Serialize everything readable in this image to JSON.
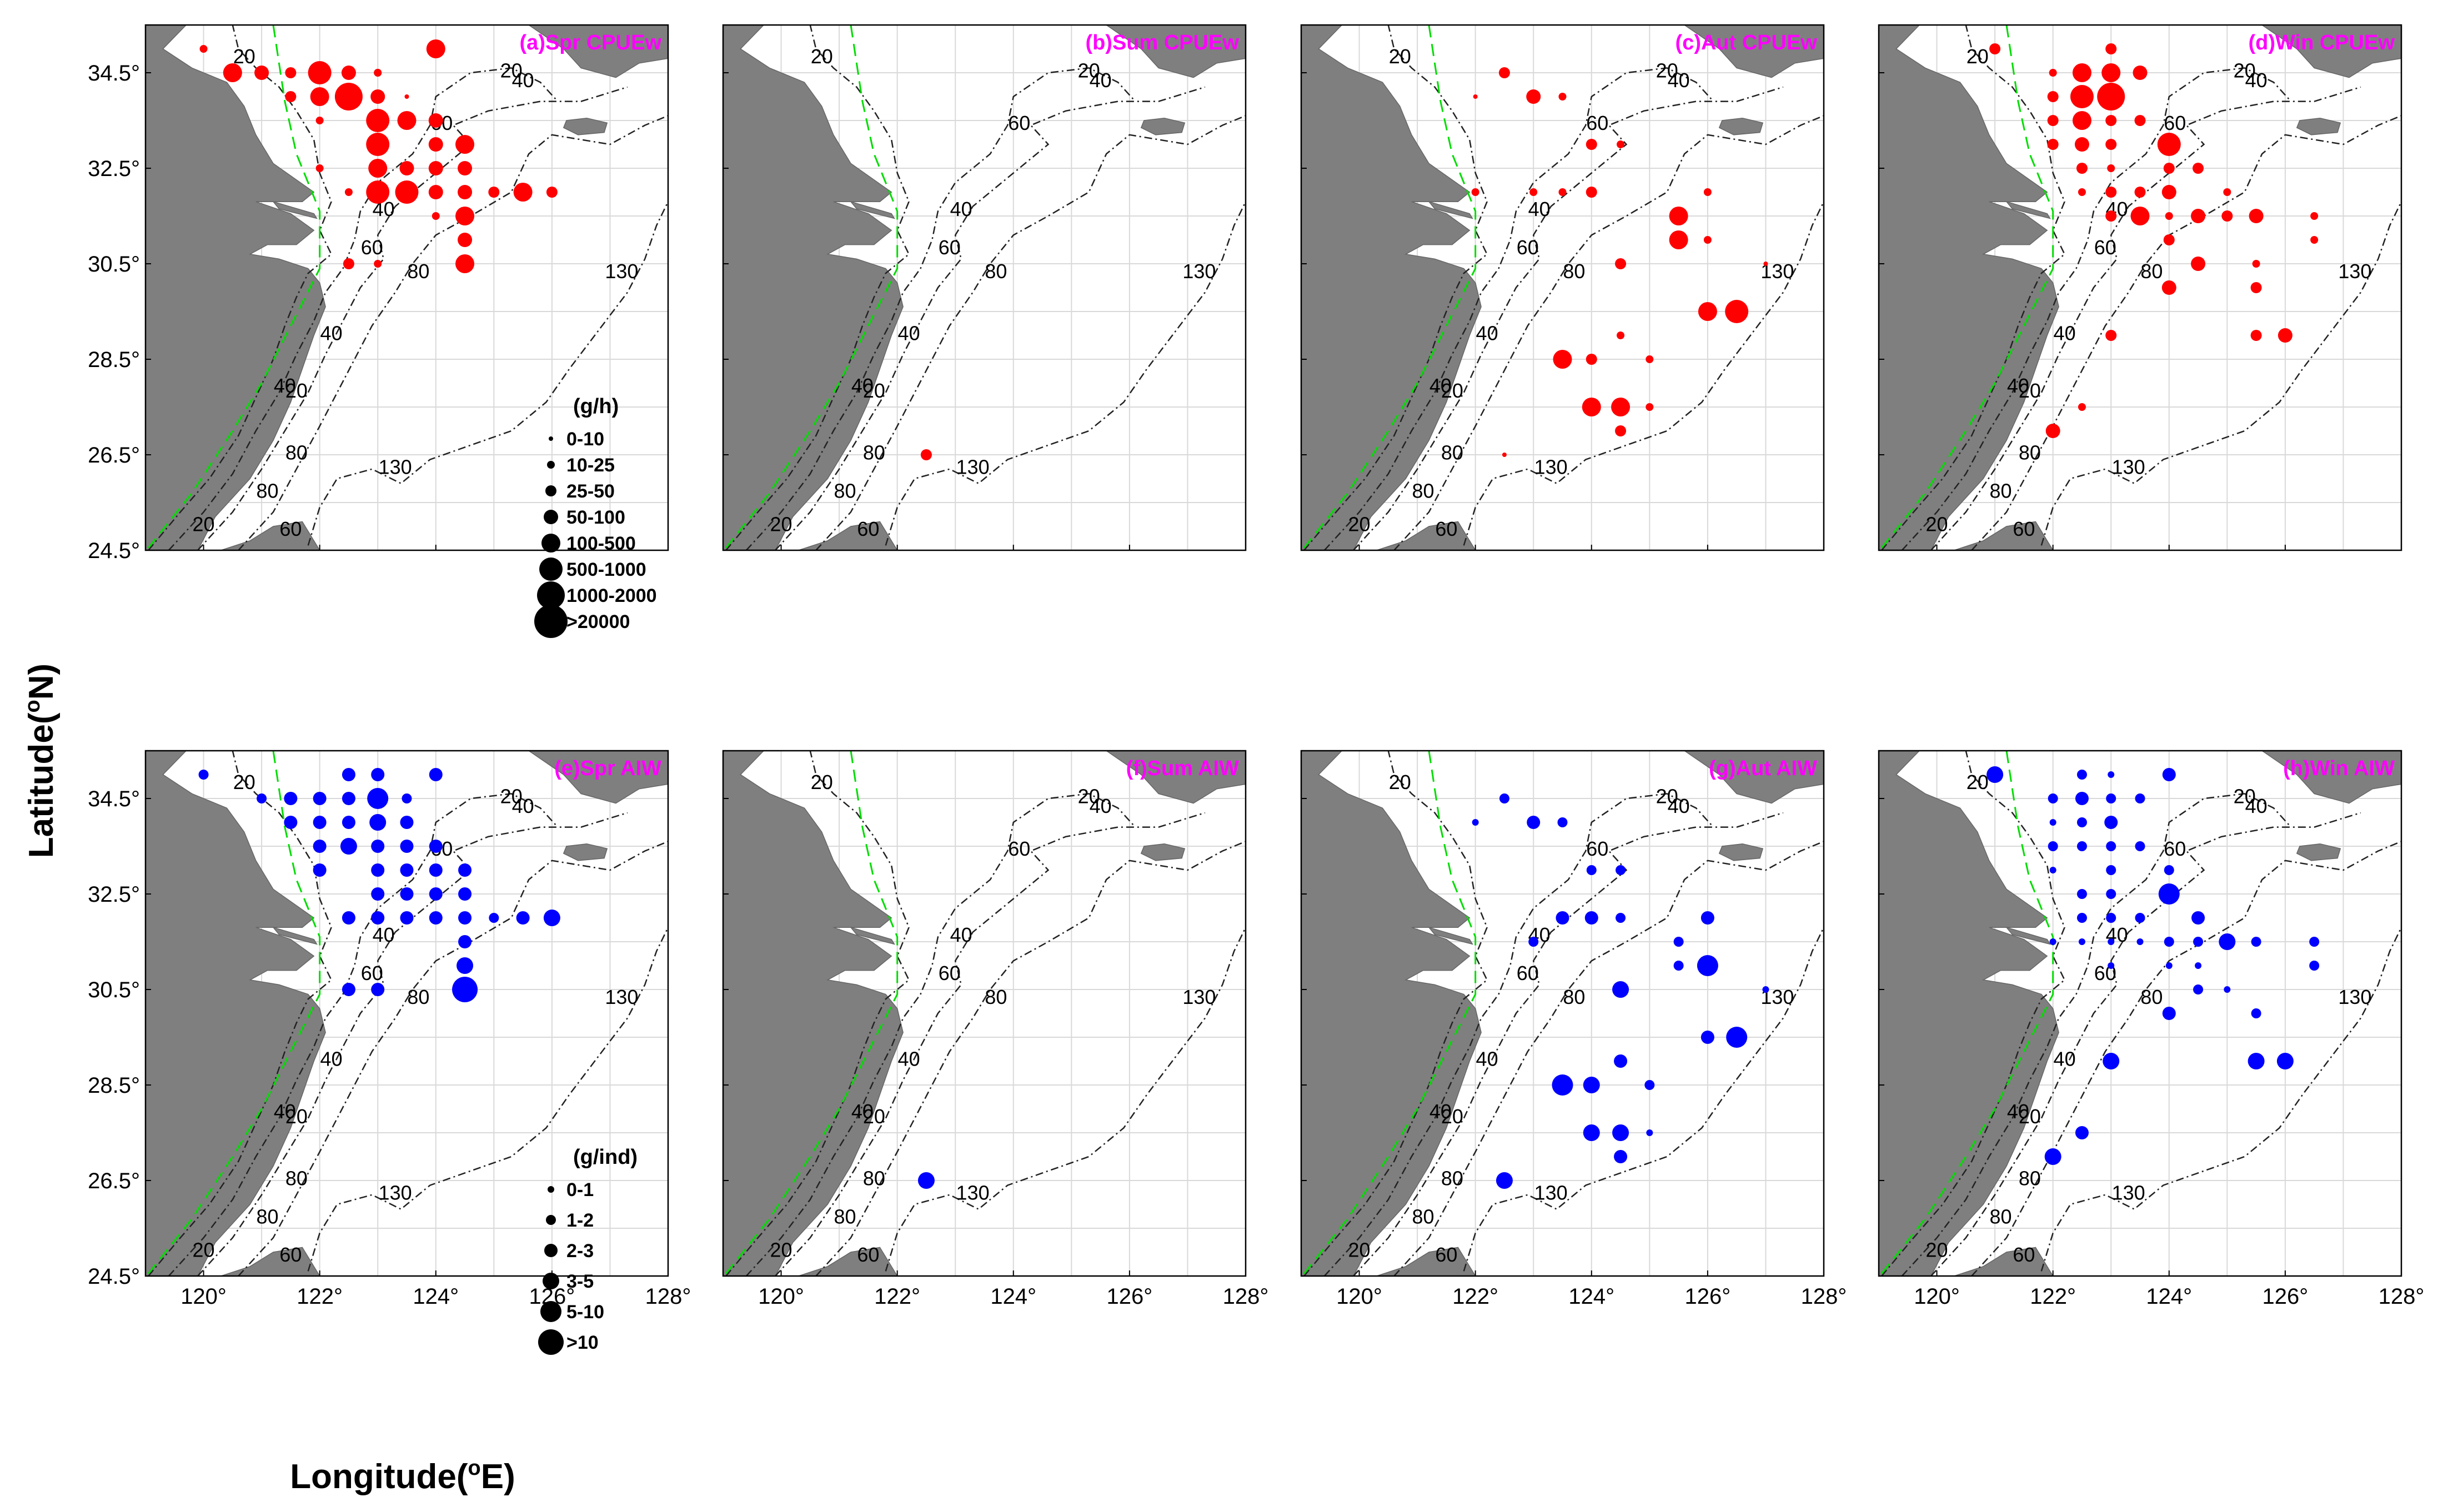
{
  "figure": {
    "ylabel": "Latitude(°N)",
    "xlabel": "Longitude(°E)",
    "ylabel_main": "Latitude(",
    "ylabel_sup": "o",
    "ylabel_end": "N)",
    "xlabel_main": "Longitude(",
    "xlabel_sup": "o",
    "xlabel_end": "E)"
  },
  "axes": {
    "lon_range": [
      119,
      128
    ],
    "lat_range": [
      24.5,
      35.5
    ],
    "lon_ticks": [
      "120°",
      "122°",
      "124°",
      "126°",
      "128°"
    ],
    "lat_ticks": [
      "24.5°",
      "26.5°",
      "28.5°",
      "30.5°",
      "32.5°",
      "34.5°"
    ]
  },
  "contour_labels": [
    "20",
    "40",
    "60",
    "80",
    "130"
  ],
  "colors": {
    "cpue": "#ff0000",
    "aiw": "#0000ff",
    "land": "#7f7f7f",
    "title": "#ff00ff",
    "boundary": "#00dd00"
  },
  "legends": {
    "cpue": {
      "unit": "(g/h)",
      "classes": [
        "0-10",
        "10-25",
        "25-50",
        "50-100",
        "100-500",
        "500-1000",
        "1000-2000",
        ">20000"
      ]
    },
    "aiw": {
      "unit": "(g/ind)",
      "classes": [
        "0-1",
        "1-2",
        "2-3",
        "3-5",
        "5-10",
        ">10"
      ]
    }
  },
  "chart_data": {
    "type": "scatter",
    "description_units": "longitude/latitude in degrees; size is the class index of the legend (0-based)",
    "panels": [
      {
        "title": "(a)Spr CPUEw",
        "variable": "cpue",
        "points": [
          [
            120,
            35,
            1
          ],
          [
            120.5,
            34.5,
            4
          ],
          [
            121,
            34.5,
            3
          ],
          [
            121.5,
            34.5,
            2
          ],
          [
            122,
            34.5,
            5
          ],
          [
            122.5,
            34.5,
            3
          ],
          [
            123,
            34.5,
            1
          ],
          [
            124,
            35,
            4
          ],
          [
            121.5,
            34,
            2
          ],
          [
            122,
            34,
            4
          ],
          [
            122.5,
            34,
            6
          ],
          [
            123,
            34,
            3
          ],
          [
            123.5,
            34,
            0
          ],
          [
            122,
            33.5,
            1
          ],
          [
            123,
            33.5,
            5
          ],
          [
            123.5,
            33.5,
            4
          ],
          [
            124,
            33.5,
            3
          ],
          [
            123,
            33,
            5
          ],
          [
            124,
            33,
            3
          ],
          [
            122,
            32.5,
            1
          ],
          [
            123,
            32.5,
            4
          ],
          [
            123.5,
            32.5,
            3
          ],
          [
            124,
            32.5,
            3
          ],
          [
            124.5,
            32.5,
            3
          ],
          [
            122.5,
            32,
            1
          ],
          [
            123,
            32,
            5
          ],
          [
            123.5,
            32,
            5
          ],
          [
            124,
            32,
            3
          ],
          [
            124.5,
            32,
            3
          ],
          [
            125,
            32,
            2
          ],
          [
            125.5,
            32,
            4
          ],
          [
            126,
            32,
            2
          ],
          [
            124,
            31.5,
            1
          ],
          [
            124.5,
            31.5,
            4
          ],
          [
            124.5,
            31,
            3
          ],
          [
            124.5,
            30.5,
            4
          ],
          [
            122.5,
            30.5,
            2
          ],
          [
            123,
            30.5,
            1
          ],
          [
            123,
            34.5,
            1
          ],
          [
            124.5,
            33,
            4
          ]
        ]
      },
      {
        "title": "(b)Sum CPUEw",
        "variable": "cpue",
        "points": [
          [
            122.5,
            26.5,
            2
          ]
        ]
      },
      {
        "title": "(c)Aut CPUEw",
        "variable": "cpue",
        "points": [
          [
            122.5,
            34.5,
            2
          ],
          [
            123,
            34,
            3
          ],
          [
            123.5,
            34,
            1
          ],
          [
            122,
            34,
            0
          ],
          [
            124,
            33,
            2
          ],
          [
            124.5,
            33,
            1
          ],
          [
            122,
            32,
            1
          ],
          [
            123,
            32,
            1
          ],
          [
            123.5,
            32,
            1
          ],
          [
            124,
            32,
            2
          ],
          [
            126,
            32,
            1
          ],
          [
            125.5,
            31.5,
            4
          ],
          [
            125.5,
            31,
            4
          ],
          [
            126,
            31,
            1
          ],
          [
            124.5,
            30.5,
            2
          ],
          [
            127,
            30.5,
            0
          ],
          [
            126,
            29.5,
            4
          ],
          [
            126.5,
            29.5,
            5
          ],
          [
            124,
            28.5,
            2
          ],
          [
            123.5,
            28.5,
            4
          ],
          [
            124.5,
            29,
            1
          ],
          [
            125,
            28.5,
            1
          ],
          [
            124,
            27.5,
            4
          ],
          [
            124.5,
            27.5,
            4
          ],
          [
            125,
            27.5,
            1
          ],
          [
            124.5,
            27,
            2
          ],
          [
            122.5,
            26.5,
            0
          ]
        ]
      },
      {
        "title": "(d)Win CPUEw",
        "variable": "cpue",
        "points": [
          [
            121,
            35,
            2
          ],
          [
            122,
            34.5,
            1
          ],
          [
            122.5,
            34.5,
            4
          ],
          [
            123,
            34.5,
            4
          ],
          [
            123.5,
            34.5,
            3
          ],
          [
            123,
            35,
            2
          ],
          [
            122,
            34,
            2
          ],
          [
            122.5,
            34,
            5
          ],
          [
            123,
            34,
            6
          ],
          [
            122,
            33.5,
            2
          ],
          [
            122.5,
            33.5,
            4
          ],
          [
            123,
            33.5,
            2
          ],
          [
            123.5,
            33.5,
            2
          ],
          [
            122,
            33,
            2
          ],
          [
            122.5,
            33,
            3
          ],
          [
            123,
            33,
            2
          ],
          [
            124,
            33,
            5
          ],
          [
            122.5,
            32.5,
            2
          ],
          [
            123,
            32.5,
            1
          ],
          [
            124,
            32.5,
            2
          ],
          [
            124.5,
            32.5,
            2
          ],
          [
            122.5,
            32,
            1
          ],
          [
            123,
            32,
            2
          ],
          [
            123.5,
            32,
            2
          ],
          [
            124,
            32,
            3
          ],
          [
            125,
            32,
            1
          ],
          [
            123,
            31.5,
            2
          ],
          [
            123.5,
            31.5,
            4
          ],
          [
            124,
            31.5,
            1
          ],
          [
            124.5,
            31.5,
            3
          ],
          [
            125,
            31.5,
            2
          ],
          [
            125.5,
            31.5,
            3
          ],
          [
            126.5,
            31.5,
            1
          ],
          [
            124,
            31,
            2
          ],
          [
            126.5,
            31,
            1
          ],
          [
            124.5,
            30.5,
            3
          ],
          [
            125.5,
            30.5,
            1
          ],
          [
            124,
            30,
            3
          ],
          [
            125.5,
            30,
            2
          ],
          [
            123,
            29,
            2
          ],
          [
            125.5,
            29,
            2
          ],
          [
            126,
            29,
            3
          ],
          [
            122.5,
            27.5,
            1
          ],
          [
            122,
            27,
            3
          ]
        ]
      },
      {
        "title": "(e)Spr AIW",
        "variable": "aiw",
        "points": [
          [
            120,
            35,
            1
          ],
          [
            121,
            34.5,
            1
          ],
          [
            121.5,
            34.5,
            2
          ],
          [
            122,
            34.5,
            2
          ],
          [
            122.5,
            34.5,
            2
          ],
          [
            123,
            34.5,
            4
          ],
          [
            123.5,
            34.5,
            1
          ],
          [
            122.5,
            35,
            2
          ],
          [
            123,
            35,
            2
          ],
          [
            124,
            35,
            2
          ],
          [
            121.5,
            34,
            2
          ],
          [
            122,
            34,
            2
          ],
          [
            122.5,
            34,
            2
          ],
          [
            123,
            34,
            3
          ],
          [
            123.5,
            34,
            2
          ],
          [
            122,
            33.5,
            2
          ],
          [
            122.5,
            33.5,
            3
          ],
          [
            123,
            33.5,
            2
          ],
          [
            123.5,
            33.5,
            2
          ],
          [
            124,
            33.5,
            2
          ],
          [
            122,
            33,
            2
          ],
          [
            123,
            33,
            2
          ],
          [
            123.5,
            33,
            2
          ],
          [
            124,
            33,
            2
          ],
          [
            124.5,
            33,
            2
          ],
          [
            123,
            32.5,
            2
          ],
          [
            123.5,
            32.5,
            2
          ],
          [
            124,
            32.5,
            2
          ],
          [
            124.5,
            32.5,
            2
          ],
          [
            122.5,
            32,
            2
          ],
          [
            123,
            32,
            2
          ],
          [
            123.5,
            32,
            2
          ],
          [
            124,
            32,
            2
          ],
          [
            124.5,
            32,
            2
          ],
          [
            125,
            32,
            1
          ],
          [
            125.5,
            32,
            2
          ],
          [
            126,
            32,
            3
          ],
          [
            124.5,
            31.5,
            2
          ],
          [
            124.5,
            31,
            3
          ],
          [
            124.5,
            30.5,
            5
          ],
          [
            122.5,
            30.5,
            2
          ],
          [
            123,
            30.5,
            2
          ]
        ]
      },
      {
        "title": "(f)Sum AIW",
        "variable": "aiw",
        "points": [
          [
            122.5,
            26.5,
            3
          ]
        ]
      },
      {
        "title": "(g)Aut AIW",
        "variable": "aiw",
        "points": [
          [
            122.5,
            34.5,
            1
          ],
          [
            123,
            34,
            2
          ],
          [
            123.5,
            34,
            1
          ],
          [
            122,
            34,
            0
          ],
          [
            124,
            33,
            1
          ],
          [
            124.5,
            33,
            1
          ],
          [
            123.5,
            32,
            2
          ],
          [
            124,
            32,
            2
          ],
          [
            124.5,
            32,
            1
          ],
          [
            126,
            32,
            2
          ],
          [
            123,
            31.5,
            1
          ],
          [
            125.5,
            31.5,
            1
          ],
          [
            126,
            31,
            4
          ],
          [
            125.5,
            31,
            1
          ],
          [
            124.5,
            30.5,
            3
          ],
          [
            127,
            30.5,
            0
          ],
          [
            126,
            29.5,
            2
          ],
          [
            126.5,
            29.5,
            4
          ],
          [
            123.5,
            28.5,
            4
          ],
          [
            124,
            28.5,
            3
          ],
          [
            124.5,
            29,
            2
          ],
          [
            125,
            28.5,
            1
          ],
          [
            124,
            27.5,
            3
          ],
          [
            124.5,
            27.5,
            3
          ],
          [
            125,
            27.5,
            0
          ],
          [
            124.5,
            27,
            2
          ],
          [
            122.5,
            26.5,
            3
          ]
        ]
      },
      {
        "title": "(h)Win AIW",
        "variable": "aiw",
        "points": [
          [
            121,
            35,
            3
          ],
          [
            122.5,
            35,
            1
          ],
          [
            123,
            35,
            0
          ],
          [
            124,
            35,
            2
          ],
          [
            122,
            34.5,
            1
          ],
          [
            122.5,
            34.5,
            2
          ],
          [
            123,
            34.5,
            1
          ],
          [
            123.5,
            34.5,
            1
          ],
          [
            122,
            34,
            0
          ],
          [
            122.5,
            34,
            1
          ],
          [
            123,
            34,
            2
          ],
          [
            122,
            33.5,
            1
          ],
          [
            122.5,
            33.5,
            1
          ],
          [
            123,
            33.5,
            1
          ],
          [
            123.5,
            33.5,
            1
          ],
          [
            122,
            33,
            0
          ],
          [
            123,
            33,
            1
          ],
          [
            124,
            33,
            1
          ],
          [
            122.5,
            32.5,
            1
          ],
          [
            123,
            32.5,
            1
          ],
          [
            124,
            32.5,
            4
          ],
          [
            122.5,
            32,
            1
          ],
          [
            123,
            32,
            1
          ],
          [
            123.5,
            32,
            1
          ],
          [
            124.5,
            32,
            2
          ],
          [
            122,
            31.5,
            0
          ],
          [
            122.5,
            31.5,
            0
          ],
          [
            123,
            31.5,
            0
          ],
          [
            123.5,
            31.5,
            0
          ],
          [
            124,
            31.5,
            1
          ],
          [
            124.5,
            31.5,
            1
          ],
          [
            125,
            31.5,
            3
          ],
          [
            125.5,
            31.5,
            1
          ],
          [
            126.5,
            31.5,
            1
          ],
          [
            123,
            31,
            0
          ],
          [
            124,
            31,
            0
          ],
          [
            124.5,
            31,
            0
          ],
          [
            126.5,
            31,
            1
          ],
          [
            124.5,
            30.5,
            1
          ],
          [
            125,
            30.5,
            0
          ],
          [
            124,
            30,
            2
          ],
          [
            125.5,
            30,
            1
          ],
          [
            123,
            29,
            3
          ],
          [
            125.5,
            29,
            3
          ],
          [
            126,
            29,
            3
          ],
          [
            122.5,
            27.5,
            2
          ],
          [
            122,
            27,
            3
          ]
        ]
      }
    ]
  }
}
